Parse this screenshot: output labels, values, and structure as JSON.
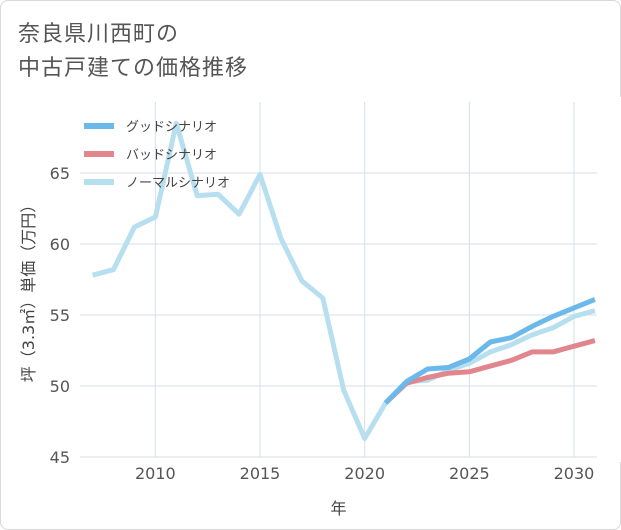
{
  "title_lines": [
    "奈良県川西町の",
    "中古戸建ての価格推移"
  ],
  "chart_data": {
    "type": "line",
    "title": "奈良県川西町の中古戸建ての価格推移",
    "xlabel": "年",
    "ylabel": "坪（3.3㎡）単価（万円）",
    "xlim": [
      2006.4,
      2031.1
    ],
    "ylim": [
      45,
      70
    ],
    "xticks": [
      2010,
      2015,
      2020,
      2025,
      2030
    ],
    "yticks": [
      45,
      50,
      55,
      60,
      65
    ],
    "legend_position": "top-left",
    "series": [
      {
        "name": "グッドシナリオ",
        "color": "#6bb8ea",
        "x": [
          2021,
          2022,
          2023,
          2024,
          2025,
          2026,
          2027,
          2028,
          2029,
          2030,
          2031
        ],
        "values": [
          48.8,
          50.3,
          51.2,
          51.3,
          51.9,
          53.1,
          53.4,
          54.2,
          54.9,
          55.5,
          56.1
        ]
      },
      {
        "name": "バッドシナリオ",
        "color": "#e0868c",
        "x": [
          2021,
          2022,
          2023,
          2024,
          2025,
          2026,
          2027,
          2028,
          2029,
          2030,
          2031
        ],
        "values": [
          48.8,
          50.2,
          50.6,
          50.9,
          51.0,
          51.4,
          51.8,
          52.4,
          52.4,
          52.8,
          53.2
        ]
      },
      {
        "name": "ノーマルシナリオ",
        "color": "#b7dfef",
        "x": [
          2007,
          2008,
          2009,
          2010,
          2011,
          2012,
          2013,
          2014,
          2015,
          2016,
          2017,
          2018,
          2019,
          2020,
          2021,
          2022,
          2023,
          2024,
          2025,
          2026,
          2027,
          2028,
          2029,
          2030,
          2031
        ],
        "values": [
          57.8,
          58.2,
          61.2,
          61.9,
          68.5,
          63.4,
          63.5,
          62.1,
          64.9,
          60.4,
          57.4,
          56.2,
          49.7,
          46.3,
          48.8,
          50.3,
          50.4,
          51.1,
          51.6,
          52.4,
          52.9,
          53.6,
          54.1,
          54.9,
          55.3
        ]
      }
    ]
  }
}
